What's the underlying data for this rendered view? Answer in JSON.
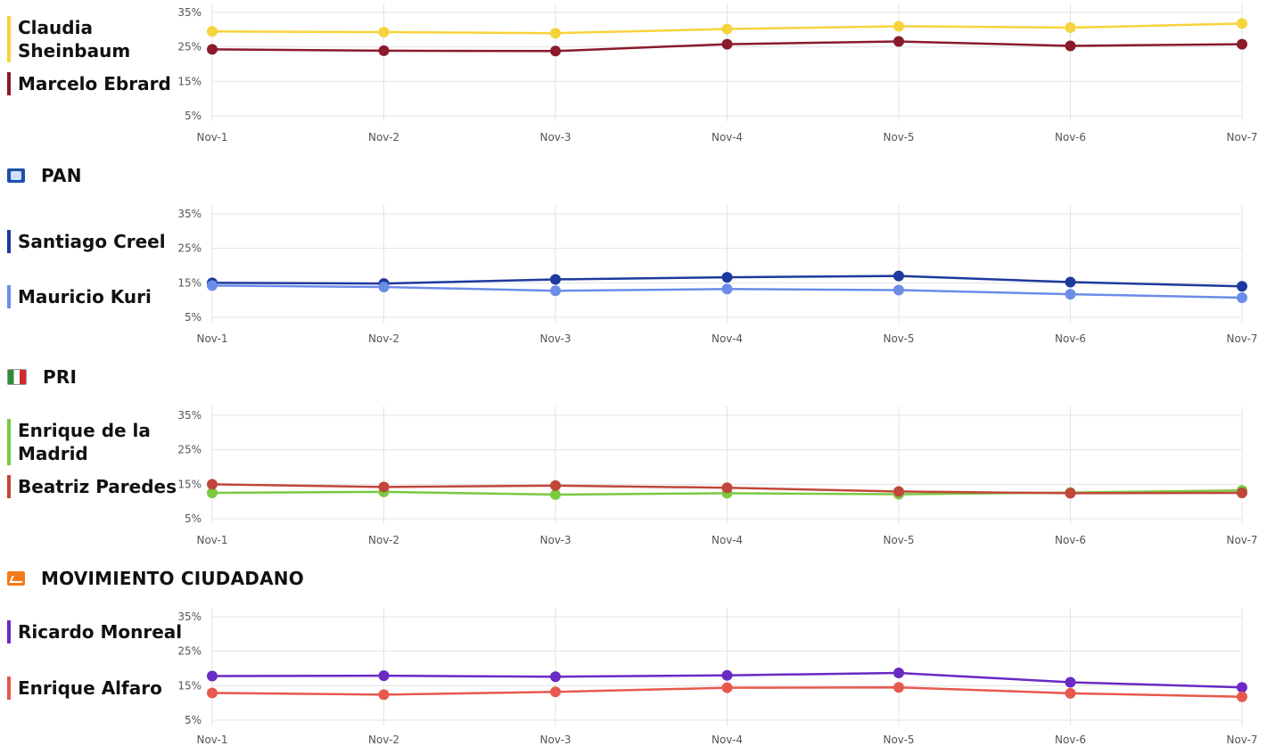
{
  "x_labels": [
    "Nov-1",
    "Nov-2",
    "Nov-3",
    "Nov-4",
    "Nov-5",
    "Nov-6",
    "Nov-7"
  ],
  "y_ticks": [
    "5%",
    "15%",
    "25%",
    "35%"
  ],
  "parties": [
    {
      "name": "",
      "logo": "none"
    },
    {
      "name": "PAN",
      "logo": "pan-logo-icon"
    },
    {
      "name": "PRI",
      "logo": "pri-logo-icon"
    },
    {
      "name": "MOVIMIENTO CIUDADANO",
      "logo": "mc-logo-icon"
    }
  ],
  "chart_data": [
    {
      "type": "line",
      "categories": [
        "Nov-1",
        "Nov-2",
        "Nov-3",
        "Nov-4",
        "Nov-5",
        "Nov-6",
        "Nov-7"
      ],
      "ylim": [
        5,
        35
      ],
      "yticks": [
        5,
        15,
        25,
        35
      ],
      "grid": true,
      "legend": "left",
      "series": [
        {
          "name": "Claudia Sheinbaum",
          "color": "#f6d33c",
          "values": [
            29.5,
            29.3,
            29.0,
            30.2,
            31.0,
            30.6,
            31.8
          ]
        },
        {
          "name": "Marcelo Ebrard",
          "color": "#8b1a2b",
          "values": [
            24.3,
            23.9,
            23.8,
            25.8,
            26.6,
            25.3,
            25.8
          ]
        }
      ]
    },
    {
      "type": "line",
      "categories": [
        "Nov-1",
        "Nov-2",
        "Nov-3",
        "Nov-4",
        "Nov-5",
        "Nov-6",
        "Nov-7"
      ],
      "ylim": [
        5,
        35
      ],
      "yticks": [
        5,
        15,
        25,
        35
      ],
      "grid": true,
      "legend": "left",
      "series": [
        {
          "name": "Santiago Creel",
          "color": "#1e3a9e",
          "values": [
            15.0,
            14.8,
            16.0,
            16.6,
            17.0,
            15.2,
            14.0
          ]
        },
        {
          "name": "Mauricio Kuri",
          "color": "#6b8de8",
          "values": [
            14.2,
            13.8,
            12.7,
            13.2,
            12.9,
            11.7,
            10.7
          ]
        }
      ]
    },
    {
      "type": "line",
      "categories": [
        "Nov-1",
        "Nov-2",
        "Nov-3",
        "Nov-4",
        "Nov-5",
        "Nov-6",
        "Nov-7"
      ],
      "ylim": [
        5,
        35
      ],
      "yticks": [
        5,
        15,
        25,
        35
      ],
      "grid": true,
      "legend": "left",
      "series": [
        {
          "name": "Enrique de la Madrid",
          "color": "#7ac943",
          "values": [
            12.5,
            12.8,
            12.0,
            12.4,
            12.1,
            12.6,
            13.2
          ]
        },
        {
          "name": "Beatriz Paredes",
          "color": "#c0473a",
          "values": [
            15.0,
            14.2,
            14.6,
            14.0,
            12.9,
            12.4,
            12.5
          ]
        }
      ]
    },
    {
      "type": "line",
      "categories": [
        "Nov-1",
        "Nov-2",
        "Nov-3",
        "Nov-4",
        "Nov-5",
        "Nov-6",
        "Nov-7"
      ],
      "ylim": [
        5,
        35
      ],
      "yticks": [
        5,
        15,
        25,
        35
      ],
      "grid": true,
      "legend": "left",
      "series": [
        {
          "name": "Ricardo Monreal",
          "color": "#6a2ac4",
          "values": [
            17.8,
            17.9,
            17.6,
            18.0,
            18.7,
            16.0,
            14.5
          ]
        },
        {
          "name": "Enrique Alfaro",
          "color": "#e8584d",
          "values": [
            12.9,
            12.4,
            13.2,
            14.4,
            14.5,
            12.8,
            11.8
          ]
        }
      ]
    }
  ]
}
